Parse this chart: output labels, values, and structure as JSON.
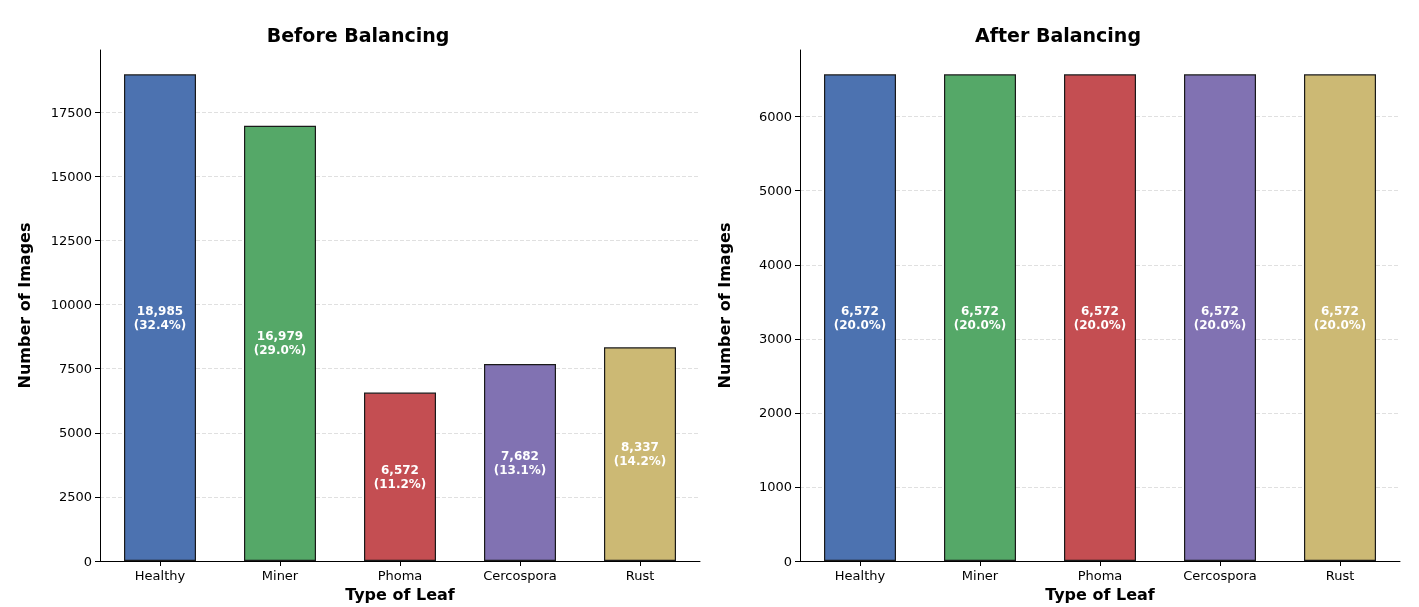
{
  "chart_data": [
    {
      "type": "bar",
      "title": "Before Balancing",
      "xlabel": "Type of Leaf",
      "ylabel": "Number of Images",
      "categories": [
        "Healthy",
        "Miner",
        "Phoma",
        "Cercospora",
        "Rust"
      ],
      "values": [
        18985,
        16979,
        6572,
        7682,
        8337
      ],
      "colors": [
        "#4c72b0",
        "#55a868",
        "#c44e52",
        "#8172b2",
        "#ccb974"
      ],
      "value_labels": [
        "18,985\n(32.4%)",
        "16,979\n(29.0%)",
        "6,572\n(11.2%)",
        "7,682\n(13.1%)",
        "8,337\n(14.2%)"
      ],
      "ylim": [
        0,
        19934
      ],
      "yticks": [
        0,
        2500,
        5000,
        7500,
        10000,
        12500,
        15000,
        17500
      ],
      "grid": "y"
    },
    {
      "type": "bar",
      "title": "After Balancing",
      "xlabel": "Type of Leaf",
      "ylabel": "Number of Images",
      "categories": [
        "Healthy",
        "Miner",
        "Phoma",
        "Cercospora",
        "Rust"
      ],
      "values": [
        6572,
        6572,
        6572,
        6572,
        6572
      ],
      "colors": [
        "#4c72b0",
        "#55a868",
        "#c44e52",
        "#8172b2",
        "#ccb974"
      ],
      "value_labels": [
        "6,572\n(20.0%)",
        "6,572\n(20.0%)",
        "6,572\n(20.0%)",
        "6,572\n(20.0%)",
        "6,572\n(20.0%)"
      ],
      "ylim": [
        0,
        6900
      ],
      "yticks": [
        0,
        1000,
        2000,
        3000,
        4000,
        5000,
        6000
      ],
      "grid": "y"
    }
  ]
}
